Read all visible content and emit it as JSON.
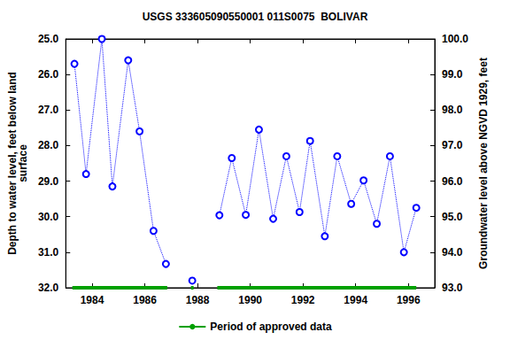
{
  "chart_data": {
    "type": "line",
    "title": "USGS 333605090550001 011S0075  BOLIVAR",
    "y_label": "Depth to water level, feet below land\nsurface",
    "y2_label": "Groundwater level above NGVD 1929, feet",
    "x": [
      1983.33,
      1983.77,
      1984.37,
      1984.77,
      1985.37,
      1985.8,
      1986.33,
      1986.8,
      1987.3,
      1987.8,
      1988.3,
      1988.83,
      1989.3,
      1989.83,
      1990.33,
      1990.87,
      1991.37,
      1991.87,
      1992.27,
      1992.83,
      1993.3,
      1993.83,
      1994.3,
      1994.8,
      1995.3,
      1995.83,
      1996.3
    ],
    "values": [
      25.7,
      28.8,
      25.0,
      29.15,
      25.6,
      27.6,
      30.4,
      31.33,
      null,
      31.8,
      null,
      29.96,
      28.35,
      29.95,
      27.55,
      30.06,
      28.3,
      29.87,
      27.87,
      30.55,
      28.3,
      29.64,
      28.98,
      30.2,
      28.3,
      31.0,
      29.75
    ],
    "color": "#0000ff",
    "marker": "circle",
    "line_style": "dotted",
    "xlim": [
      1983,
      1997
    ],
    "xticks": [
      1984,
      1986,
      1988,
      1990,
      1992,
      1994,
      1996
    ],
    "ylim": [
      25,
      32
    ],
    "yticks": [
      {
        "value": 25,
        "label": "25.0"
      },
      {
        "value": 26,
        "label": "26.0"
      },
      {
        "value": 27,
        "label": "27.0"
      },
      {
        "value": 28,
        "label": "28.0"
      },
      {
        "value": 29,
        "label": "29.0"
      },
      {
        "value": 30,
        "label": "30.0"
      },
      {
        "value": 31,
        "label": "31.0"
      },
      {
        "value": 32,
        "label": "32.0"
      }
    ],
    "y2lim": [
      100,
      93
    ],
    "y2ticks": [
      {
        "value": 93,
        "label": "93.0"
      },
      {
        "value": 94,
        "label": "94.0"
      },
      {
        "value": 95,
        "label": "95.0"
      },
      {
        "value": 96,
        "label": "96.0"
      },
      {
        "value": 97,
        "label": "97.0"
      },
      {
        "value": 98,
        "label": "98.0"
      },
      {
        "value": 99,
        "label": "99.0"
      },
      {
        "value": 100,
        "label": "100.0"
      }
    ],
    "approved_periods": {
      "name": "Period of approved data",
      "color": "#00a000",
      "ranges": [
        [
          1983.25,
          1986.85
        ],
        [
          1987.75,
          1987.85
        ],
        [
          1988.75,
          1996.3
        ]
      ]
    },
    "grid": false,
    "legend": "bottom"
  }
}
